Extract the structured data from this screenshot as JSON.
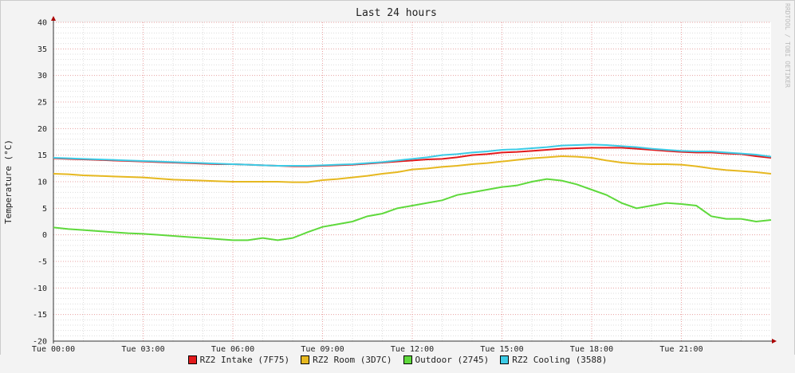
{
  "chart_data": {
    "type": "line",
    "title": "Last 24 hours",
    "y_label": "Temperature (°C)",
    "watermark": "RRDTOOL / TOBI OETIKER",
    "x": [
      0,
      0.5,
      1,
      1.5,
      2,
      2.5,
      3,
      3.5,
      4,
      4.5,
      5,
      5.5,
      6,
      6.5,
      7,
      7.5,
      8,
      8.5,
      9,
      9.5,
      10,
      10.5,
      11,
      11.5,
      12,
      12.5,
      13,
      13.5,
      14,
      14.5,
      15,
      15.5,
      16,
      16.5,
      17,
      17.5,
      18,
      18.5,
      19,
      19.5,
      20,
      20.5,
      21,
      21.5,
      22,
      22.5,
      23,
      23.5,
      24
    ],
    "xlim": [
      0,
      24
    ],
    "xticks": [
      {
        "value": 0,
        "label": "Tue 00:00"
      },
      {
        "value": 3,
        "label": "Tue 03:00"
      },
      {
        "value": 6,
        "label": "Tue 06:00"
      },
      {
        "value": 9,
        "label": "Tue 09:00"
      },
      {
        "value": 12,
        "label": "Tue 12:00"
      },
      {
        "value": 15,
        "label": "Tue 15:00"
      },
      {
        "value": 18,
        "label": "Tue 18:00"
      },
      {
        "value": 21,
        "label": "Tue 21:00"
      }
    ],
    "ylim": [
      -20,
      40
    ],
    "yticks": [
      -20,
      -15,
      -10,
      -5,
      0,
      5,
      10,
      15,
      20,
      25,
      30,
      35,
      40
    ],
    "grid": true,
    "minor_grid": true,
    "series": [
      {
        "name": "RZ2 Intake (7F75)",
        "color": "#e31a1c",
        "values": [
          14.4,
          14.3,
          14.2,
          14.1,
          14.0,
          13.9,
          13.8,
          13.7,
          13.6,
          13.5,
          13.4,
          13.3,
          13.3,
          13.2,
          13.1,
          13.0,
          12.9,
          12.9,
          13.0,
          13.1,
          13.2,
          13.4,
          13.6,
          13.8,
          14.0,
          14.2,
          14.3,
          14.6,
          15.0,
          15.2,
          15.5,
          15.6,
          15.8,
          16.0,
          16.2,
          16.3,
          16.4,
          16.4,
          16.4,
          16.2,
          16.0,
          15.8,
          15.6,
          15.5,
          15.5,
          15.3,
          15.2,
          14.8,
          14.5
        ]
      },
      {
        "name": "RZ2 Room (3D7C)",
        "color": "#e6b820",
        "values": [
          11.5,
          11.4,
          11.2,
          11.1,
          11.0,
          10.9,
          10.8,
          10.6,
          10.4,
          10.3,
          10.2,
          10.1,
          10.0,
          10.0,
          10.0,
          10.0,
          9.9,
          9.9,
          10.3,
          10.5,
          10.8,
          11.1,
          11.5,
          11.8,
          12.3,
          12.5,
          12.8,
          13.0,
          13.3,
          13.5,
          13.8,
          14.1,
          14.4,
          14.6,
          14.8,
          14.7,
          14.5,
          14.0,
          13.6,
          13.4,
          13.3,
          13.3,
          13.2,
          12.9,
          12.5,
          12.2,
          12.0,
          11.8,
          11.5
        ]
      },
      {
        "name": "Outdoor (2745)",
        "color": "#5fd93c",
        "values": [
          1.4,
          1.1,
          0.9,
          0.7,
          0.5,
          0.3,
          0.2,
          0.0,
          -0.2,
          -0.4,
          -0.6,
          -0.8,
          -1.0,
          -1.0,
          -0.6,
          -1.0,
          -0.6,
          0.5,
          1.5,
          2.0,
          2.5,
          3.5,
          4.0,
          5.0,
          5.5,
          6.0,
          6.5,
          7.5,
          8.0,
          8.5,
          9.0,
          9.3,
          10.0,
          10.5,
          10.2,
          9.5,
          8.5,
          7.5,
          6.0,
          5.0,
          5.5,
          6.0,
          5.8,
          5.5,
          3.5,
          3.0,
          3.0,
          2.5,
          2.8
        ]
      },
      {
        "name": "RZ2 Cooling (3588)",
        "color": "#3ccbe6",
        "values": [
          14.5,
          14.4,
          14.3,
          14.2,
          14.1,
          14.0,
          13.9,
          13.8,
          13.7,
          13.6,
          13.5,
          13.4,
          13.3,
          13.2,
          13.1,
          13.0,
          13.0,
          13.0,
          13.1,
          13.2,
          13.3,
          13.5,
          13.7,
          14.0,
          14.3,
          14.6,
          15.0,
          15.2,
          15.5,
          15.7,
          16.0,
          16.1,
          16.3,
          16.5,
          16.8,
          16.9,
          17.0,
          16.9,
          16.7,
          16.5,
          16.2,
          16.0,
          15.8,
          15.7,
          15.7,
          15.5,
          15.3,
          15.1,
          14.7
        ]
      }
    ]
  }
}
